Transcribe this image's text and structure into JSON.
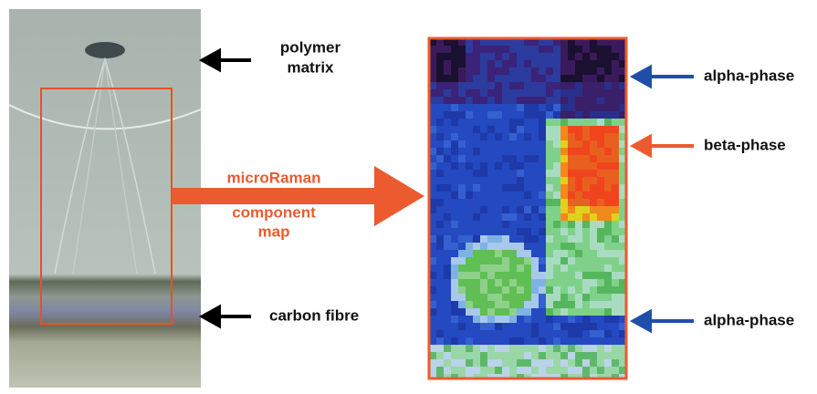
{
  "labels": {
    "polymer_matrix": [
      "polymer",
      "matrix"
    ],
    "carbon_fibre": "carbon fibre",
    "microraman": "microRaman",
    "component_map": [
      "component",
      "map"
    ],
    "alpha_phase_top": "alpha-phase",
    "beta_phase": "beta-phase",
    "alpha_phase_bottom": "alpha-phase"
  }
}
